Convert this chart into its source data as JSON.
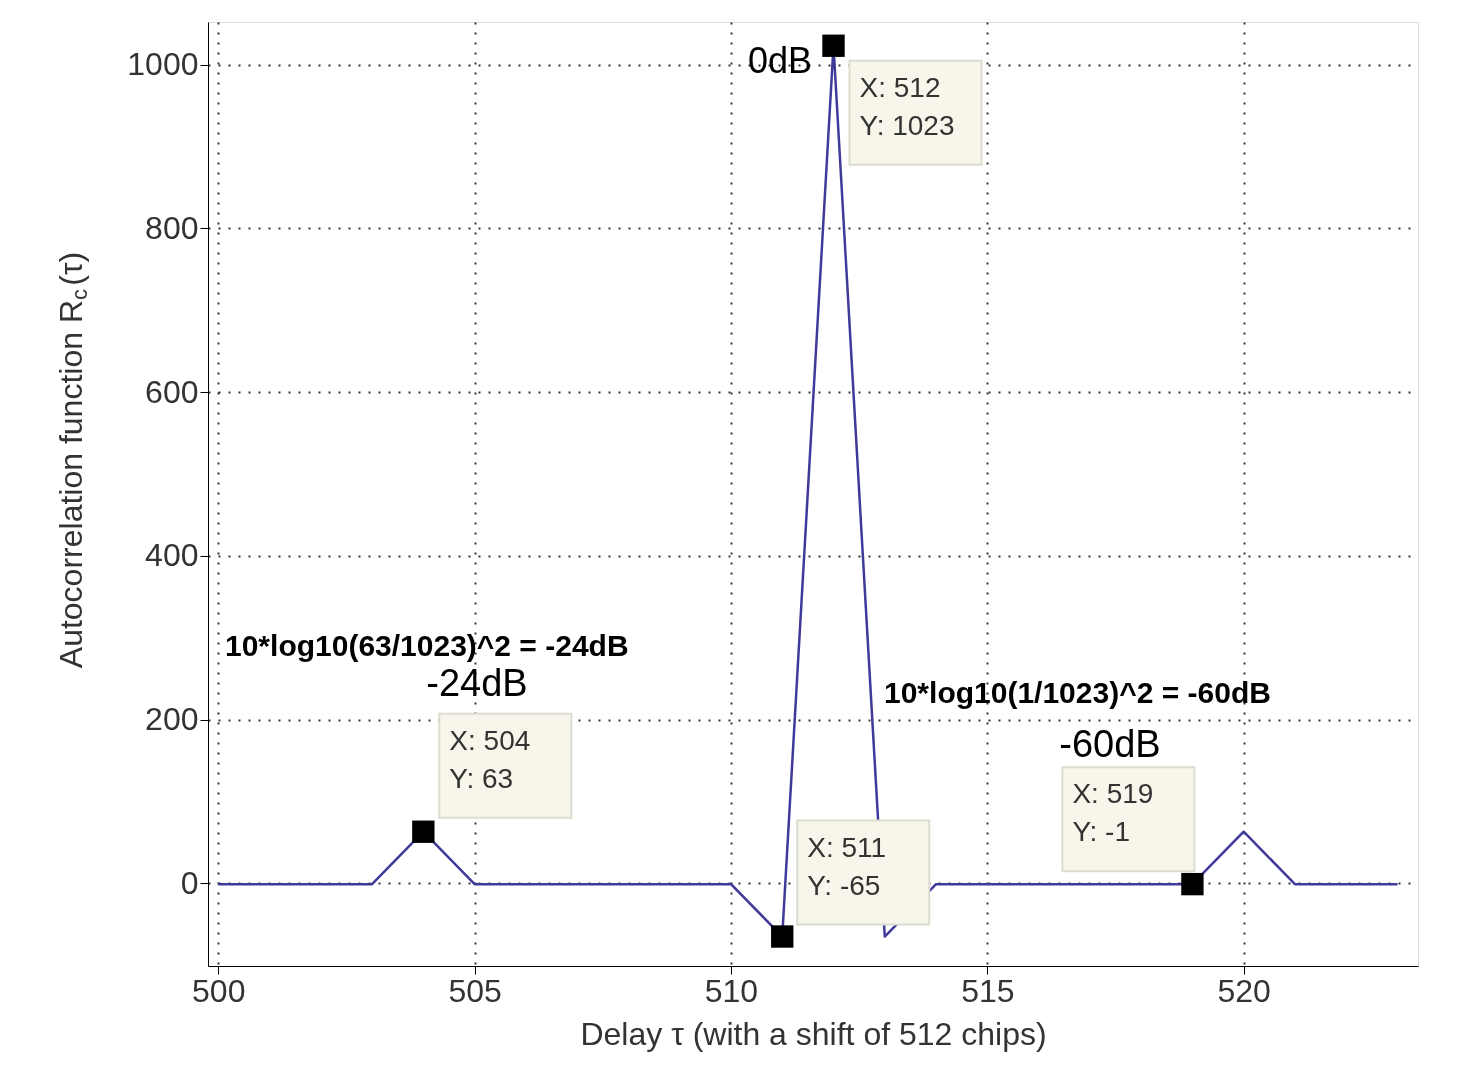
{
  "chart_data": {
    "type": "line",
    "xlabel": "Delay τ (with a shift of 512 chips)",
    "ylabel": "Autocorrelation function R$_{c}$(τ)",
    "x": [
      500,
      501,
      502,
      503,
      504,
      505,
      506,
      507,
      508,
      509,
      510,
      511,
      512,
      513,
      514,
      515,
      516,
      517,
      518,
      519,
      520,
      521,
      522,
      523
    ],
    "series": [
      {
        "color": "#3f3a9a",
        "values": [
          -1,
          -1,
          -1,
          -1,
          63,
          -1,
          -1,
          -1,
          -1,
          -1,
          -1,
          -65,
          1023,
          -65,
          -1,
          -1,
          -1,
          -1,
          -1,
          -1,
          63,
          -1,
          -1,
          -1
        ]
      }
    ],
    "xlim": [
      499.8,
      523.4
    ],
    "ylim": [
      -101,
      1052
    ],
    "xticks": [
      500,
      505,
      510,
      515,
      520
    ],
    "yticks": [
      0,
      200,
      400,
      600,
      800,
      1000
    ],
    "grid": true,
    "marker": "none",
    "line_style": "solid",
    "annotations": [
      {
        "text": "X: 504\nY: 63",
        "x": 504,
        "y": 63
      },
      {
        "text": "X: 511\nY: -65",
        "x": 511,
        "y": -65
      },
      {
        "text": "X: 512\nY: 1023",
        "x": 512,
        "y": 1023
      },
      {
        "text": "X: 519\nY: -1",
        "x": 519,
        "y": -1
      },
      "0dB",
      "10*log10(63/1023)^2 = -24dB",
      "-24dB",
      "10*log10(1/1023)^2 = -60dB",
      "-60dB"
    ]
  }
}
